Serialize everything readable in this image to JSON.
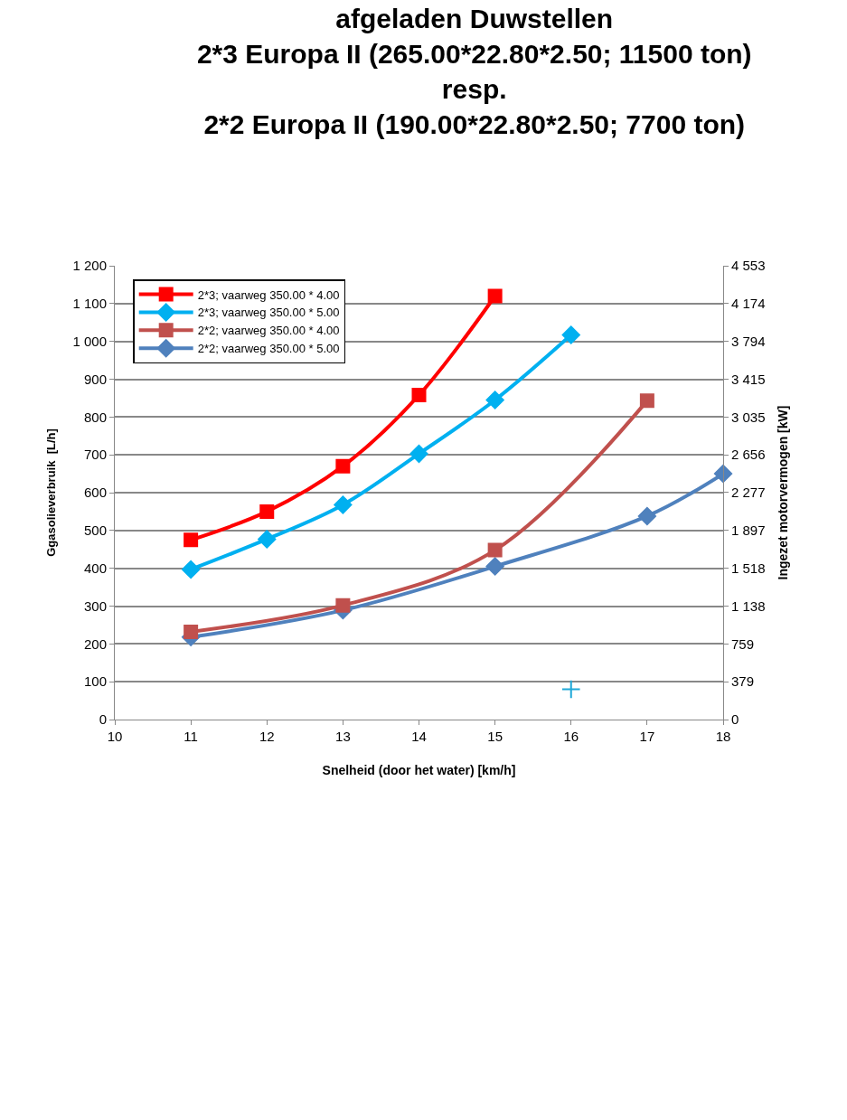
{
  "chart_data": {
    "type": "line",
    "title": "afgeladen Duwstellen\n2*3 Europa II (265.00*22.80*2.50; 11500 ton)\nresp.\n2*2 Europa II (190.00*22.80*2.50; 7700 ton)",
    "xlabel": "Snelheid (door het water) [km/h]",
    "ylabel": "Ggasolieverbruik  [L/h]",
    "y2label": "Ingezet motorvermogen [kW]",
    "xlim": [
      10,
      18
    ],
    "xticks": [
      10,
      11,
      12,
      13,
      14,
      15,
      16,
      17,
      18
    ],
    "ylim": [
      0,
      1200
    ],
    "yticks": [
      0,
      100,
      200,
      300,
      400,
      500,
      600,
      700,
      800,
      900,
      {
        "value": 1000,
        "label": "1 000"
      },
      {
        "value": 1100,
        "label": "1 100"
      },
      {
        "value": 1200,
        "label": "1 200"
      }
    ],
    "y2lim": [
      0,
      4553
    ],
    "y2ticks": [
      0,
      379,
      759,
      {
        "value": 1138,
        "label": "1 138"
      },
      {
        "value": 1518,
        "label": "1 518"
      },
      {
        "value": 1897,
        "label": "1 897"
      },
      {
        "value": 2277,
        "label": "2 277"
      },
      {
        "value": 2656,
        "label": "2 656"
      },
      {
        "value": 3035,
        "label": "3 035"
      },
      {
        "value": 3415,
        "label": "3 415"
      },
      {
        "value": 3794,
        "label": "3 794"
      },
      {
        "value": 4174,
        "label": "4 174"
      },
      {
        "value": 4553,
        "label": "4 553"
      }
    ],
    "grid": "y",
    "legend": "top left",
    "series": [
      {
        "name": "2*3; vaarweg 350.00 * 4.00",
        "color": "#ff0000",
        "marker": "square",
        "x": [
          11,
          12,
          13,
          14,
          15
        ],
        "values": [
          475,
          550,
          670,
          858,
          1120
        ]
      },
      {
        "name": "2*3; vaarweg 350.00 * 5.00",
        "color": "#00b0f0",
        "marker": "diamond",
        "x": [
          11,
          12,
          13,
          14,
          15,
          16
        ],
        "values": [
          397,
          477,
          568,
          703,
          845,
          1017
        ]
      },
      {
        "name": "2*2; vaarweg 350.00 * 4.00",
        "color": "#c0504d",
        "marker": "square",
        "x": [
          11,
          13,
          15,
          17
        ],
        "values": [
          232,
          302,
          448,
          843
        ]
      },
      {
        "name": "2*2; vaarweg 350.00 * 5.00",
        "color": "#4f81bd",
        "marker": "diamond",
        "x": [
          11,
          13,
          15,
          17,
          18
        ],
        "values": [
          218,
          289,
          405,
          538,
          650
        ]
      },
      {
        "type": "scatter",
        "color": "#1fa8d8",
        "marker": "cross",
        "x": [
          16
        ],
        "values": [
          80
        ]
      }
    ]
  }
}
